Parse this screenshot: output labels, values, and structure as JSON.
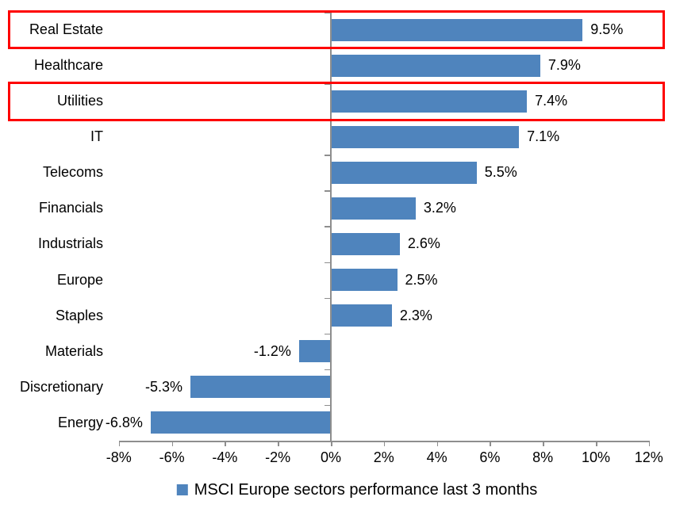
{
  "chart_data": {
    "type": "bar",
    "orientation": "horizontal",
    "title": "",
    "categories": [
      "Real Estate",
      "Healthcare",
      "Utilities",
      "IT",
      "Telecoms",
      "Financials",
      "Industrials",
      "Europe",
      "Staples",
      "Materials",
      "Discretionary",
      "Energy"
    ],
    "values": [
      9.5,
      7.9,
      7.4,
      7.1,
      5.5,
      3.2,
      2.6,
      2.5,
      2.3,
      -1.2,
      -5.3,
      -6.8
    ],
    "data_labels": [
      "9.5%",
      "7.9%",
      "7.4%",
      "7.1%",
      "5.5%",
      "3.2%",
      "2.6%",
      "2.5%",
      "2.3%",
      "-1.2%",
      "-5.3%",
      "-6.8%"
    ],
    "x_axis": {
      "min": -8,
      "max": 12,
      "tick_values": [
        -8,
        -6,
        -4,
        -2,
        0,
        2,
        4,
        6,
        8,
        10,
        12
      ],
      "tick_labels": [
        "-8%",
        "-6%",
        "-4%",
        "-2%",
        "0%",
        "2%",
        "4%",
        "6%",
        "8%",
        "10%",
        "12%"
      ]
    },
    "grid": false,
    "legend": {
      "position": "bottom",
      "label": "MSCI Europe sectors performance last 3 months"
    },
    "series_color": "#4f84bd",
    "axis_color": "#8e8e8e",
    "highlight_color": "#fe0000",
    "highlighted_categories": [
      "Real Estate",
      "Utilities"
    ]
  }
}
